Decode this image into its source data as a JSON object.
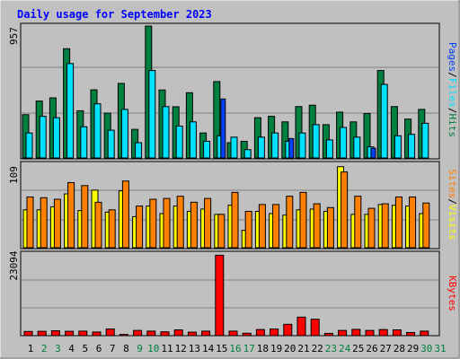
{
  "title": "Daily usage for September 2023",
  "colors": {
    "background": "#c0c0c0",
    "title": "#0000ff",
    "hits": "#008040",
    "files": "#00e0ff",
    "pages": "#0040ff",
    "visits": "#ffff00",
    "sites": "#ff8000",
    "kbytes": "#ff0000",
    "weekday_label": "#000000",
    "weekend_label": "#008040",
    "gridline": "#808080"
  },
  "chart_data": [
    {
      "type": "bar",
      "panel": "hits-files-pages",
      "categories": [
        "1",
        "2",
        "3",
        "4",
        "5",
        "6",
        "7",
        "8",
        "9",
        "10",
        "11",
        "12",
        "13",
        "14",
        "15",
        "16",
        "17",
        "18",
        "19",
        "20",
        "21",
        "22",
        "23",
        "24",
        "25",
        "26",
        "27",
        "28",
        "29",
        "30",
        "31"
      ],
      "weekend_days": [
        "2",
        "3",
        "9",
        "10",
        "16",
        "17",
        "23",
        "24",
        "30",
        "31"
      ],
      "ymax_label": "957",
      "ylim": [
        0,
        957
      ],
      "legend": [
        {
          "text": "Hits",
          "color_key": "hits"
        },
        {
          "text": "/",
          "color_key": "none"
        },
        {
          "text": "Files",
          "color_key": "files"
        },
        {
          "text": "/",
          "color_key": "none"
        },
        {
          "text": "Pages",
          "color_key": "pages"
        }
      ],
      "series": [
        {
          "name": "Hits",
          "color_key": "hits",
          "values": [
            312,
            410,
            433,
            787,
            340,
            491,
            323,
            537,
            206,
            950,
            490,
            369,
            470,
            180,
            550,
            110,
            120,
            290,
            300,
            260,
            370,
            380,
            240,
            330,
            260,
            320,
            630,
            370,
            280,
            350,
            0
          ]
        },
        {
          "name": "Files",
          "color_key": "files",
          "values": [
            180,
            300,
            290,
            680,
            225,
            390,
            200,
            350,
            110,
            630,
            370,
            230,
            260,
            120,
            160,
            150,
            60,
            150,
            180,
            120,
            180,
            240,
            130,
            220,
            150,
            80,
            530,
            160,
            170,
            250,
            0
          ]
        },
        {
          "name": "Pages",
          "color_key": "pages",
          "values": [
            0,
            0,
            0,
            0,
            0,
            0,
            0,
            0,
            0,
            0,
            0,
            0,
            0,
            0,
            425,
            0,
            0,
            0,
            0,
            140,
            0,
            0,
            0,
            0,
            0,
            70,
            0,
            0,
            0,
            0,
            0
          ]
        }
      ]
    },
    {
      "type": "bar",
      "panel": "visits-sites",
      "categories": [
        "1",
        "2",
        "3",
        "4",
        "5",
        "6",
        "7",
        "8",
        "9",
        "10",
        "11",
        "12",
        "13",
        "14",
        "15",
        "16",
        "17",
        "18",
        "19",
        "20",
        "21",
        "22",
        "23",
        "24",
        "25",
        "26",
        "27",
        "28",
        "29",
        "30",
        "31"
      ],
      "ymax_label": "109",
      "ylim": [
        0,
        109
      ],
      "legend": [
        {
          "text": "Visits",
          "color_key": "visits"
        },
        {
          "text": "/",
          "color_key": "none"
        },
        {
          "text": "Sites",
          "color_key": "sites"
        }
      ],
      "series": [
        {
          "name": "Visits",
          "color_key": "visits",
          "values": [
            50,
            50,
            54,
            71,
            49,
            76,
            47,
            75,
            41,
            55,
            45,
            55,
            48,
            51,
            44,
            56,
            23,
            48,
            45,
            43,
            50,
            51,
            48,
            107,
            44,
            44,
            57,
            56,
            55,
            45,
            0
          ]
        },
        {
          "name": "Sites",
          "color_key": "sites",
          "values": [
            67,
            66,
            64,
            86,
            82,
            60,
            50,
            88,
            55,
            64,
            65,
            68,
            60,
            65,
            44,
            73,
            48,
            57,
            57,
            68,
            73,
            58,
            53,
            100,
            68,
            52,
            58,
            67,
            67,
            59,
            0
          ]
        }
      ]
    },
    {
      "type": "bar",
      "panel": "kbytes",
      "categories": [
        "1",
        "2",
        "3",
        "4",
        "5",
        "6",
        "7",
        "8",
        "9",
        "10",
        "11",
        "12",
        "13",
        "14",
        "15",
        "16",
        "17",
        "18",
        "19",
        "20",
        "21",
        "22",
        "23",
        "24",
        "25",
        "26",
        "27",
        "28",
        "29",
        "30",
        "31"
      ],
      "ymax_label": "23094",
      "ylim": [
        0,
        23094
      ],
      "legend": [
        {
          "text": "KBytes",
          "color_key": "kbytes"
        }
      ],
      "series": [
        {
          "name": "KBytes",
          "color_key": "kbytes",
          "values": [
            1200,
            1250,
            1400,
            1250,
            1300,
            1050,
            1900,
            350,
            1500,
            1300,
            1100,
            1650,
            1000,
            1300,
            23000,
            1300,
            700,
            1750,
            1900,
            3250,
            5300,
            4700,
            650,
            1500,
            1800,
            1500,
            1750,
            1650,
            900,
            1300,
            0
          ]
        }
      ]
    }
  ]
}
